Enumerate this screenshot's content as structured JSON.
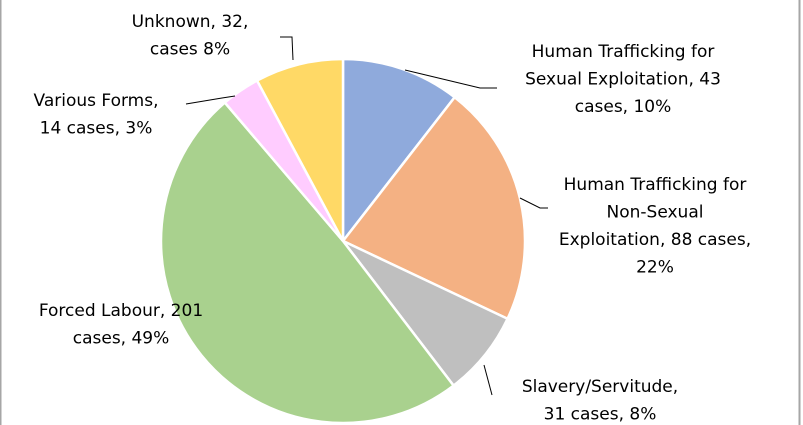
{
  "chart_data": {
    "type": "pie",
    "values": [
      43,
      88,
      31,
      201,
      14,
      32
    ],
    "value_labels": [
      [
        "Human Trafficking for",
        "Sexual Exploitation, 43",
        "cases, 10%"
      ],
      [
        "Human Trafficking for",
        "Non-Sexual",
        "Exploitation, 88 cases,",
        "22%"
      ],
      [
        "Slavery/Servitude,",
        "31 cases, 8%"
      ],
      [
        "Forced Labour, 201",
        "cases, 49%"
      ],
      [
        "Various Forms,",
        "14 cases, 3%"
      ],
      [
        "Unknown, 32,",
        "cases 8%"
      ]
    ],
    "colors": [
      "#8faadc",
      "#f4b183",
      "#bfbfbf",
      "#a9d18e",
      "#ffccff",
      "#ffd966"
    ]
  }
}
